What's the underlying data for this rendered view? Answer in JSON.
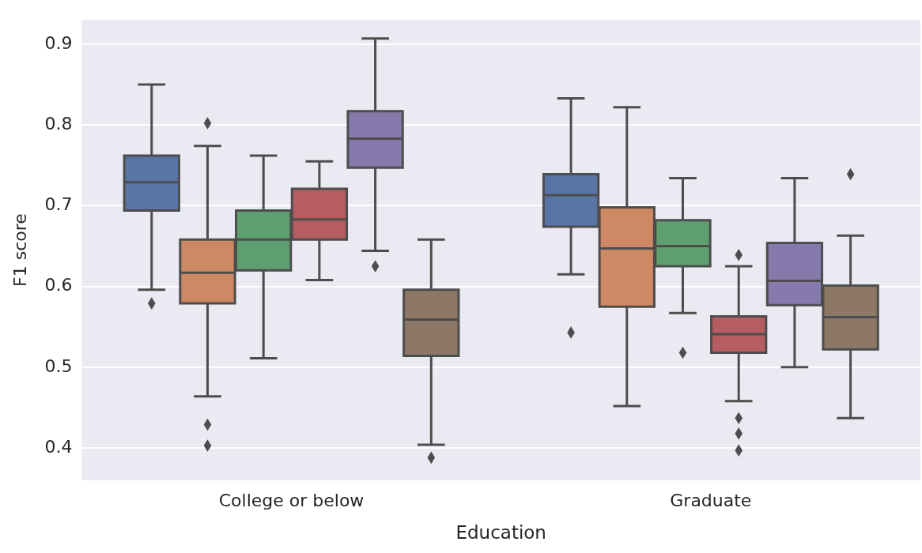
{
  "chart_data": {
    "type": "box",
    "xlabel": "Education",
    "ylabel": "F1 score",
    "categories": [
      "College or below",
      "Graduate"
    ],
    "ylim": [
      0.36,
      0.93
    ],
    "yticks": [
      0.4,
      0.5,
      0.6,
      0.7,
      0.8,
      0.9
    ],
    "grid": "y",
    "marker": "diamond",
    "series": [
      {
        "color": "#5975a4",
        "boxes": [
          {
            "low": 0.596,
            "q1": 0.694,
            "median": 0.729,
            "q3": 0.762,
            "high": 0.85,
            "outliers": [
              0.579
            ]
          },
          {
            "low": 0.615,
            "q1": 0.674,
            "median": 0.713,
            "q3": 0.739,
            "high": 0.833,
            "outliers": [
              0.543
            ]
          }
        ]
      },
      {
        "color": "#cc8963",
        "boxes": [
          {
            "low": 0.464,
            "q1": 0.579,
            "median": 0.617,
            "q3": 0.658,
            "high": 0.774,
            "outliers": [
              0.802,
              0.429,
              0.403
            ]
          },
          {
            "low": 0.452,
            "q1": 0.575,
            "median": 0.647,
            "q3": 0.698,
            "high": 0.822
          }
        ]
      },
      {
        "color": "#5f9e6e",
        "boxes": [
          {
            "low": 0.511,
            "q1": 0.62,
            "median": 0.658,
            "q3": 0.694,
            "high": 0.762
          },
          {
            "low": 0.567,
            "q1": 0.625,
            "median": 0.65,
            "q3": 0.682,
            "high": 0.734,
            "outliers": [
              0.518
            ]
          }
        ]
      },
      {
        "color": "#b55d60",
        "boxes": [
          {
            "low": 0.608,
            "q1": 0.658,
            "median": 0.683,
            "q3": 0.721,
            "high": 0.755
          },
          {
            "low": 0.458,
            "q1": 0.518,
            "median": 0.541,
            "q3": 0.563,
            "high": 0.625,
            "outliers": [
              0.639,
              0.437,
              0.418,
              0.397
            ]
          }
        ]
      },
      {
        "color": "#857aab",
        "boxes": [
          {
            "low": 0.644,
            "q1": 0.747,
            "median": 0.783,
            "q3": 0.817,
            "high": 0.907,
            "outliers": [
              0.625
            ]
          },
          {
            "low": 0.5,
            "q1": 0.577,
            "median": 0.607,
            "q3": 0.654,
            "high": 0.734
          }
        ]
      },
      {
        "color": "#8d7866",
        "boxes": [
          {
            "low": 0.404,
            "q1": 0.514,
            "median": 0.559,
            "q3": 0.596,
            "high": 0.658,
            "outliers": [
              0.388
            ]
          },
          {
            "low": 0.437,
            "q1": 0.522,
            "median": 0.562,
            "q3": 0.601,
            "high": 0.663,
            "outliers": [
              0.739
            ]
          }
        ]
      }
    ]
  }
}
